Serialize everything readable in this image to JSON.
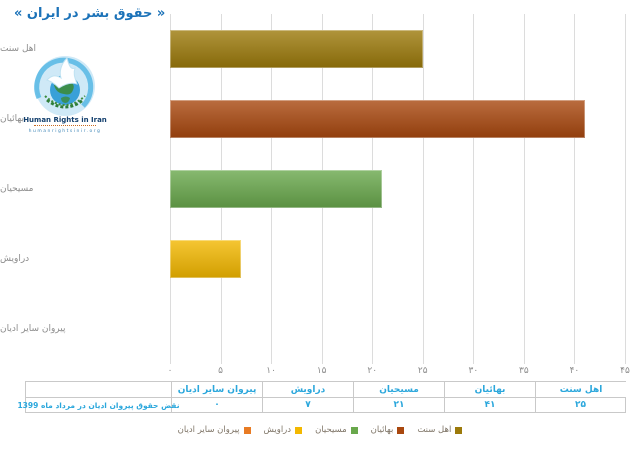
{
  "title": "« حقوق بشر در ایران »",
  "logo": {
    "name": "Human Rights in Iran",
    "url": "humanrightsinir.org"
  },
  "chart_data": {
    "type": "bar",
    "orientation": "horizontal",
    "title": "",
    "categories": [
      "اهل سنت",
      "بهائیان",
      "مسیحیان",
      "دراویش",
      "پیروان سایر ادیان"
    ],
    "values": [
      25,
      41,
      21,
      7,
      0
    ],
    "display_values": [
      "۲۵",
      "۴۱",
      "۲۱",
      "۷",
      "۰"
    ],
    "series_name": "نقض حقوق پیروان ادیان در مرداد ماه 1399",
    "colors": [
      "#9C7A0B",
      "#A9480F",
      "#69A84C",
      "#F3B800",
      "#E87B24"
    ],
    "xlim": [
      0,
      45
    ],
    "xticks": [
      0,
      5,
      10,
      15,
      20,
      25,
      30,
      35,
      40,
      45
    ],
    "xtick_labels": [
      "۰",
      "۵",
      "۱۰",
      "۱۵",
      "۲۰",
      "۲۵",
      "۳۰",
      "۳۵",
      "۴۰",
      "۴۵"
    ],
    "grid": true,
    "legend_position": "bottom",
    "data_table_shown": true
  },
  "style": {
    "title_color": "#1B72B8",
    "table_text_color": "#2BA7DC",
    "axis_text_color": "#8C8C8C",
    "gridline_color": "#DCDCDC"
  }
}
